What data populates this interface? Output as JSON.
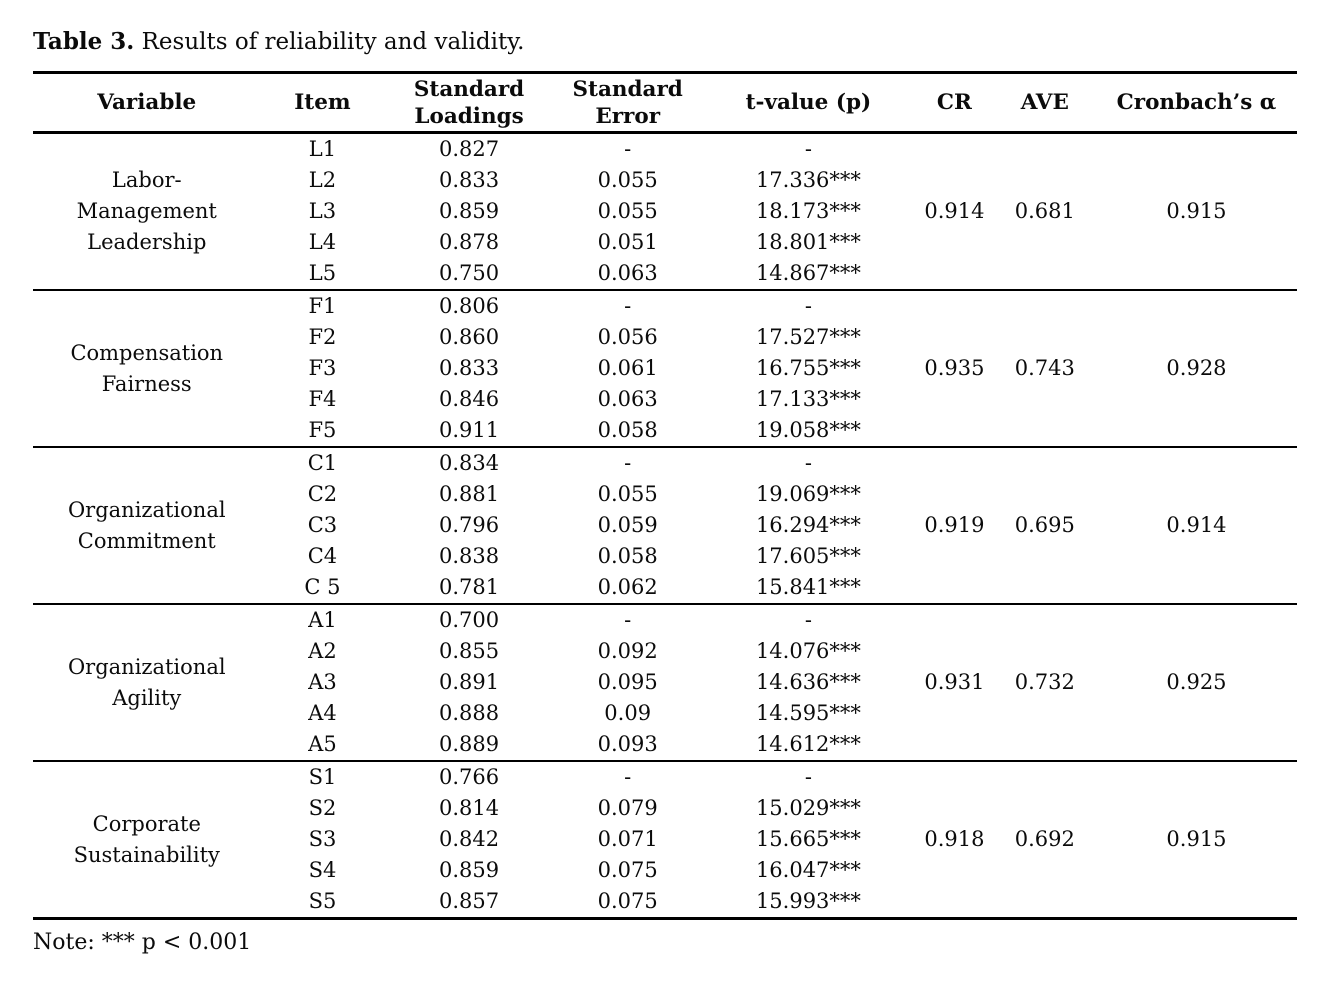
{
  "caption": {
    "label": "Table 3.",
    "text": "Results of reliability and validity."
  },
  "table": {
    "columns": [
      "Variable",
      "Item",
      "Standard\nLoadings",
      "Standard\nError",
      "t-value (p)",
      "CR",
      "AVE",
      "Cronbach’s α"
    ],
    "groups": [
      {
        "variable": "Labor-\nManagement\nLeadership",
        "cr": "0.914",
        "ave": "0.681",
        "alpha": "0.915",
        "rows": [
          {
            "item": "L1",
            "loading": "0.827",
            "se": "-",
            "t": "-"
          },
          {
            "item": "L2",
            "loading": "0.833",
            "se": "0.055",
            "t": "17.336***"
          },
          {
            "item": "L3",
            "loading": "0.859",
            "se": "0.055",
            "t": "18.173***"
          },
          {
            "item": "L4",
            "loading": "0.878",
            "se": "0.051",
            "t": "18.801***"
          },
          {
            "item": "L5",
            "loading": "0.750",
            "se": "0.063",
            "t": "14.867***"
          }
        ]
      },
      {
        "variable": "Compensation\nFairness",
        "cr": "0.935",
        "ave": "0.743",
        "alpha": "0.928",
        "rows": [
          {
            "item": "F1",
            "loading": "0.806",
            "se": "-",
            "t": "-"
          },
          {
            "item": "F2",
            "loading": "0.860",
            "se": "0.056",
            "t": "17.527***"
          },
          {
            "item": "F3",
            "loading": "0.833",
            "se": "0.061",
            "t": "16.755***"
          },
          {
            "item": "F4",
            "loading": "0.846",
            "se": "0.063",
            "t": "17.133***"
          },
          {
            "item": "F5",
            "loading": "0.911",
            "se": "0.058",
            "t": "19.058***"
          }
        ]
      },
      {
        "variable": "Organizational\nCommitment",
        "cr": "0.919",
        "ave": "0.695",
        "alpha": "0.914",
        "rows": [
          {
            "item": "C1",
            "loading": "0.834",
            "se": "-",
            "t": "-"
          },
          {
            "item": "C2",
            "loading": "0.881",
            "se": "0.055",
            "t": "19.069***"
          },
          {
            "item": "C3",
            "loading": "0.796",
            "se": "0.059",
            "t": "16.294***"
          },
          {
            "item": "C4",
            "loading": "0.838",
            "se": "0.058",
            "t": "17.605***"
          },
          {
            "item": "C 5",
            "loading": "0.781",
            "se": "0.062",
            "t": "15.841***"
          }
        ]
      },
      {
        "variable": "Organizational\nAgility",
        "cr": "0.931",
        "ave": "0.732",
        "alpha": "0.925",
        "rows": [
          {
            "item": "A1",
            "loading": "0.700",
            "se": "-",
            "t": "-"
          },
          {
            "item": "A2",
            "loading": "0.855",
            "se": "0.092",
            "t": "14.076***"
          },
          {
            "item": "A3",
            "loading": "0.891",
            "se": "0.095",
            "t": "14.636***"
          },
          {
            "item": "A4",
            "loading": "0.888",
            "se": "0.09",
            "t": "14.595***"
          },
          {
            "item": "A5",
            "loading": "0.889",
            "se": "0.093",
            "t": "14.612***"
          }
        ]
      },
      {
        "variable": "Corporate\nSustainability",
        "cr": "0.918",
        "ave": "0.692",
        "alpha": "0.915",
        "rows": [
          {
            "item": "S1",
            "loading": "0.766",
            "se": "-",
            "t": "-"
          },
          {
            "item": "S2",
            "loading": "0.814",
            "se": "0.079",
            "t": "15.029***"
          },
          {
            "item": "S3",
            "loading": "0.842",
            "se": "0.071",
            "t": "15.665***"
          },
          {
            "item": "S4",
            "loading": "0.859",
            "se": "0.075",
            "t": "16.047***"
          },
          {
            "item": "S5",
            "loading": "0.857",
            "se": "0.075",
            "t": "15.993***"
          }
        ]
      }
    ]
  },
  "note": "Note: *** p < 0.001"
}
